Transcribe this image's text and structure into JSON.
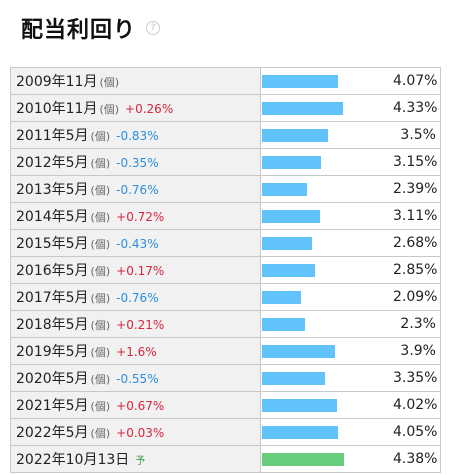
{
  "title": "配当利回り",
  "help_icon_glyph": "?",
  "colors": {
    "bar": "#61c3f9",
    "bar_forecast": "#66cd7c",
    "up": "#d9263e",
    "down": "#2a8fe0"
  },
  "rows": [
    {
      "period": "2009年11月",
      "unit": "(個)",
      "change": "",
      "dir": "",
      "value": "4.07%",
      "pct": 4.07
    },
    {
      "period": "2010年11月",
      "unit": "(個)",
      "change": "+0.26%",
      "dir": "up",
      "value": "4.33%",
      "pct": 4.33
    },
    {
      "period": "2011年5月",
      "unit": "(個)",
      "change": "-0.83%",
      "dir": "down",
      "value": "3.5%",
      "pct": 3.5
    },
    {
      "period": "2012年5月",
      "unit": "(個)",
      "change": "-0.35%",
      "dir": "down",
      "value": "3.15%",
      "pct": 3.15
    },
    {
      "period": "2013年5月",
      "unit": "(個)",
      "change": "-0.76%",
      "dir": "down",
      "value": "2.39%",
      "pct": 2.39
    },
    {
      "period": "2014年5月",
      "unit": "(個)",
      "change": "+0.72%",
      "dir": "up",
      "value": "3.11%",
      "pct": 3.11
    },
    {
      "period": "2015年5月",
      "unit": "(個)",
      "change": "-0.43%",
      "dir": "down",
      "value": "2.68%",
      "pct": 2.68
    },
    {
      "period": "2016年5月",
      "unit": "(個)",
      "change": "+0.17%",
      "dir": "up",
      "value": "2.85%",
      "pct": 2.85
    },
    {
      "period": "2017年5月",
      "unit": "(個)",
      "change": "-0.76%",
      "dir": "down",
      "value": "2.09%",
      "pct": 2.09
    },
    {
      "period": "2018年5月",
      "unit": "(個)",
      "change": "+0.21%",
      "dir": "up",
      "value": "2.3%",
      "pct": 2.3
    },
    {
      "period": "2019年5月",
      "unit": "(個)",
      "change": "+1.6%",
      "dir": "up",
      "value": "3.9%",
      "pct": 3.9
    },
    {
      "period": "2020年5月",
      "unit": "(個)",
      "change": "-0.55%",
      "dir": "down",
      "value": "3.35%",
      "pct": 3.35
    },
    {
      "period": "2021年5月",
      "unit": "(個)",
      "change": "+0.67%",
      "dir": "up",
      "value": "4.02%",
      "pct": 4.02
    },
    {
      "period": "2022年5月",
      "unit": "(個)",
      "change": "+0.03%",
      "dir": "up",
      "value": "4.05%",
      "pct": 4.05
    },
    {
      "period": "2022年10月13日",
      "unit": "",
      "change": "",
      "dir": "",
      "forecast": "予",
      "value": "4.38%",
      "pct": 4.38
    }
  ]
}
